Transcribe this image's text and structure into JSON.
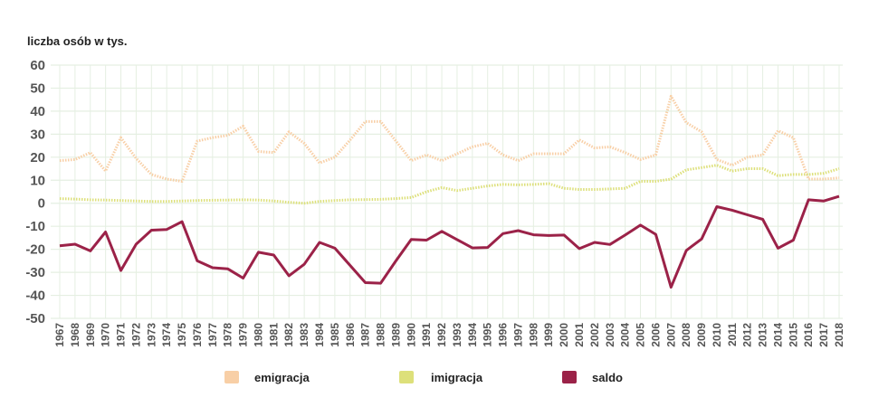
{
  "chart_data": {
    "type": "line",
    "title": "",
    "ylabel": "liczba osób w tys.",
    "xlabel": "",
    "ylim": [
      -50,
      60
    ],
    "yticks": [
      60,
      50,
      40,
      30,
      20,
      10,
      0,
      -10,
      -20,
      -30,
      -40,
      -50
    ],
    "grid": true,
    "legend_position": "bottom",
    "x": [
      1967,
      1968,
      1969,
      1970,
      1971,
      1972,
      1973,
      1974,
      1975,
      1976,
      1977,
      1978,
      1979,
      1980,
      1981,
      1982,
      1983,
      1984,
      1985,
      1986,
      1987,
      1988,
      1989,
      1990,
      1991,
      1992,
      1993,
      1994,
      1995,
      1996,
      1997,
      1998,
      1999,
      2000,
      2001,
      2002,
      2003,
      2004,
      2005,
      2006,
      2007,
      2008,
      2009,
      2010,
      2011,
      2012,
      2013,
      2014,
      2015,
      2016,
      2017,
      2018
    ],
    "series": [
      {
        "name": "emigracja",
        "color": "#f8cfa6",
        "style": "dotted",
        "values": [
          18.5,
          19,
          22,
          14,
          28.5,
          19.5,
          12.5,
          10.5,
          9.5,
          27,
          28.5,
          29.5,
          33.5,
          22.5,
          22,
          31,
          26,
          17.5,
          20,
          27.5,
          35.5,
          35.5,
          27,
          18.5,
          21,
          18.5,
          21.5,
          24.5,
          26,
          21,
          18.5,
          21.5,
          21.5,
          21.5,
          27.5,
          24,
          24.5,
          22,
          19,
          21,
          46.5,
          35,
          31,
          19,
          16.5,
          20,
          21,
          31.5,
          28.5,
          10.5,
          10.5,
          11
        ]
      },
      {
        "name": "imigracja",
        "color": "#dde07a",
        "style": "dotted",
        "values": [
          2,
          1.8,
          1.5,
          1.4,
          1.2,
          1,
          0.8,
          0.8,
          1,
          1.2,
          1.3,
          1.4,
          1.5,
          1.4,
          1,
          0.4,
          0,
          0.8,
          1.2,
          1.5,
          1.6,
          1.7,
          2,
          2.5,
          5,
          6.8,
          5.5,
          6.5,
          7.5,
          8.2,
          8,
          8.2,
          8.5,
          6.5,
          6,
          6,
          6.2,
          6.5,
          9.5,
          9.5,
          10.5,
          14.5,
          15.5,
          16.5,
          14,
          15,
          15,
          12,
          12.5,
          12.5,
          13,
          15
        ]
      },
      {
        "name": "saldo",
        "color": "#9b2248",
        "style": "solid",
        "values": [
          -18.5,
          -17.8,
          -20.7,
          -12.5,
          -29.2,
          -17.8,
          -11.7,
          -11.4,
          -8,
          -25,
          -28,
          -28.5,
          -32.5,
          -21.3,
          -22.5,
          -31.5,
          -26.5,
          -17,
          -19.5,
          -27,
          -34.5,
          -34.7,
          -25,
          -15.7,
          -16,
          -12.2,
          -15.8,
          -19.4,
          -19.2,
          -13.2,
          -11.9,
          -13.7,
          -14,
          -13.8,
          -19.7,
          -17,
          -17.9,
          -13.8,
          -9.5,
          -13.5,
          -36.5,
          -20.5,
          -15.5,
          -1.5,
          -3,
          -5,
          -7,
          -19.5,
          -16,
          1.5,
          1,
          3
        ]
      }
    ]
  }
}
